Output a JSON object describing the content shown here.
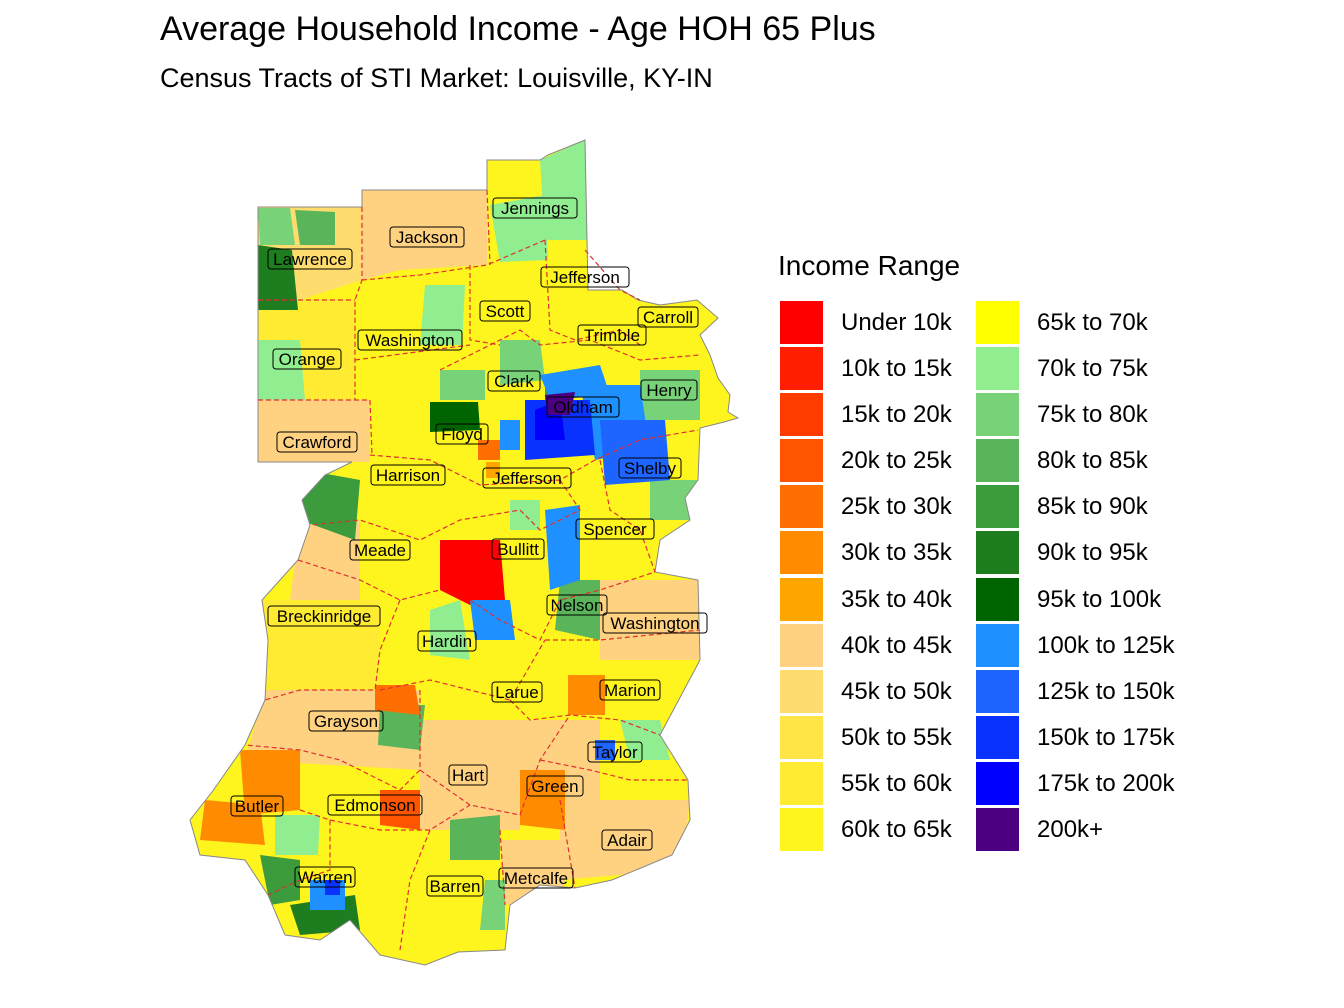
{
  "title": "Average Household Income - Age HOH 65 Plus",
  "subtitle": "Census Tracts of STI Market: Louisville, KY-IN",
  "legend": {
    "title": "Income Range",
    "items": [
      {
        "label": "Under 10k",
        "color": "#FF0000"
      },
      {
        "label": "10k to 15k",
        "color": "#FF1E00"
      },
      {
        "label": "15k to 20k",
        "color": "#FF3C00"
      },
      {
        "label": "20k to 25k",
        "color": "#FF5500"
      },
      {
        "label": "25k to 30k",
        "color": "#FF6E00"
      },
      {
        "label": "30k to 35k",
        "color": "#FF8C00"
      },
      {
        "label": "35k to 40k",
        "color": "#FFA500"
      },
      {
        "label": "40k to 45k",
        "color": "#FFD282"
      },
      {
        "label": "45k to 50k",
        "color": "#FFDC6E"
      },
      {
        "label": "50k to 55k",
        "color": "#FFE646"
      },
      {
        "label": "55k to 60k",
        "color": "#FFEB32"
      },
      {
        "label": "60k to 65k",
        "color": "#FFF51E"
      },
      {
        "label": "65k to 70k",
        "color": "#FFFF00"
      },
      {
        "label": "70k to 75k",
        "color": "#90EE90"
      },
      {
        "label": "75k to 80k",
        "color": "#78D278"
      },
      {
        "label": "80k to 85k",
        "color": "#5AB45A"
      },
      {
        "label": "85k to 90k",
        "color": "#3C9B3C"
      },
      {
        "label": "90k to 95k",
        "color": "#1E7D1E"
      },
      {
        "label": "95k to 100k",
        "color": "#006400"
      },
      {
        "label": "100k to 125k",
        "color": "#1E90FF"
      },
      {
        "label": "125k to 150k",
        "color": "#1E64FF"
      },
      {
        "label": "150k to 175k",
        "color": "#0A32FF"
      },
      {
        "label": "175k to 200k",
        "color": "#0000FF"
      },
      {
        "label": "200k+",
        "color": "#4B0082"
      }
    ]
  },
  "counties": [
    {
      "name": "Jennings"
    },
    {
      "name": "Jackson"
    },
    {
      "name": "Lawrence"
    },
    {
      "name": "Jefferson"
    },
    {
      "name": "Scott"
    },
    {
      "name": "Carroll"
    },
    {
      "name": "Trimble"
    },
    {
      "name": "Washington"
    },
    {
      "name": "Orange"
    },
    {
      "name": "Clark"
    },
    {
      "name": "Henry"
    },
    {
      "name": "Oldham"
    },
    {
      "name": "Floyd"
    },
    {
      "name": "Crawford"
    },
    {
      "name": "Shelby"
    },
    {
      "name": "Harrison"
    },
    {
      "name": "Jefferson"
    },
    {
      "name": "Spencer"
    },
    {
      "name": "Meade"
    },
    {
      "name": "Bullitt"
    },
    {
      "name": "Breckinridge"
    },
    {
      "name": "Nelson"
    },
    {
      "name": "Washington"
    },
    {
      "name": "Hardin"
    },
    {
      "name": "Marion"
    },
    {
      "name": "Larue"
    },
    {
      "name": "Grayson"
    },
    {
      "name": "Taylor"
    },
    {
      "name": "Hart"
    },
    {
      "name": "Green"
    },
    {
      "name": "Butler"
    },
    {
      "name": "Edmonson"
    },
    {
      "name": "Adair"
    },
    {
      "name": "Warren"
    },
    {
      "name": "Metcalfe"
    },
    {
      "name": "Barren"
    }
  ]
}
